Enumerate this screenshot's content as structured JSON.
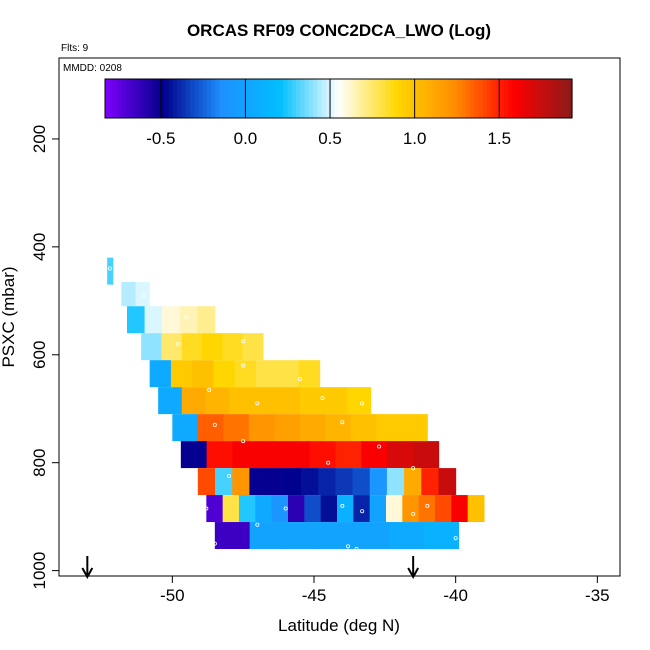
{
  "chart_data": {
    "type": "heatmap",
    "title": "ORCAS RF09 CONC2DCA_LWO (Log)",
    "flights_label": "Flts: 9",
    "date_label": "MMDD: 0208",
    "xlabel": "Latitude (deg N)",
    "ylabel": "PSXC (mbar)",
    "xlim": [
      -54.0,
      -34.2
    ],
    "ylim": [
      1010,
      50
    ],
    "y_reversed": true,
    "x_ticks": [
      -50,
      -45,
      -40,
      -35
    ],
    "x_tick_labels": [
      "-50",
      "-45",
      "-40",
      "-35"
    ],
    "y_ticks": [
      200,
      400,
      600,
      800,
      1000
    ],
    "y_tick_labels": [
      "200",
      "400",
      "600",
      "800",
      "1000"
    ],
    "colorbar": {
      "range": [
        -0.83,
        1.93
      ],
      "ticks": [
        -0.5,
        0.0,
        0.5,
        1.0,
        1.5
      ],
      "tick_labels": [
        "-0.5",
        "0.0",
        "0.5",
        "1.0",
        "1.5"
      ],
      "colors": [
        "#7f00ff",
        "#00008b",
        "#1e90ff",
        "#00bfff",
        "#ffffff",
        "#ffd700",
        "#ff8c00",
        "#ff0000",
        "#8b1a1a"
      ]
    },
    "bands": [
      {
        "p_top": 420,
        "p_bot": 470,
        "x_start": -52.3,
        "x_end": -52.1,
        "values": [
          0.3
        ]
      },
      {
        "p_top": 465,
        "p_bot": 510,
        "x_start": -51.8,
        "x_end": -50.3,
        "values": [
          0.45,
          0.5,
          0.55
        ]
      },
      {
        "p_top": 510,
        "p_bot": 560,
        "x_start": -51.6,
        "x_end": -48.5,
        "values": [
          0.25,
          0.5,
          0.6,
          0.65,
          0.7
        ]
      },
      {
        "p_top": 560,
        "p_bot": 610,
        "x_start": -51.1,
        "x_end": -46.8,
        "values": [
          0.4,
          0.75,
          0.85,
          0.9,
          0.85,
          0.8
        ]
      },
      {
        "p_top": 610,
        "p_bot": 660,
        "x_start": -50.8,
        "x_end": -44.8,
        "values": [
          0.05,
          0.95,
          1.0,
          0.9,
          0.85,
          0.8,
          0.8,
          0.85
        ]
      },
      {
        "p_top": 660,
        "p_bot": 710,
        "x_start": -50.5,
        "x_end": -43.0,
        "values": [
          0.05,
          1.1,
          1.05,
          1.0,
          1.0,
          1.0,
          0.95,
          0.95,
          0.9
        ]
      },
      {
        "p_top": 710,
        "p_bot": 760,
        "x_start": -50.0,
        "x_end": -41.0,
        "values": [
          0.05,
          1.35,
          1.3,
          1.2,
          1.15,
          1.1,
          1.05,
          1.0,
          0.95,
          0.95
        ]
      },
      {
        "p_top": 760,
        "p_bot": 810,
        "x_start": -49.7,
        "x_end": -40.6,
        "values": [
          -0.5,
          1.55,
          1.6,
          1.6,
          1.6,
          1.55,
          1.5,
          1.6,
          1.7,
          1.75
        ]
      },
      {
        "p_top": 810,
        "p_bot": 860,
        "x_start": -49.1,
        "x_end": -40.0,
        "values": [
          1.4,
          0.3,
          1.2,
          -0.5,
          -0.5,
          -0.48,
          -0.45,
          -0.4,
          -0.35,
          -0.3,
          -0.1,
          0.4,
          1.1,
          1.5,
          1.75
        ]
      },
      {
        "p_top": 860,
        "p_bot": 910,
        "x_start": -48.8,
        "x_end": -39.0,
        "values": [
          -0.7,
          0.8,
          0.25,
          0.05,
          -0.1,
          -0.6,
          -0.3,
          -0.45,
          0.1,
          -0.4,
          0.0,
          0.6,
          1.2,
          1.3,
          1.4,
          1.6,
          1.0
        ]
      },
      {
        "p_top": 910,
        "p_bot": 960,
        "x_start": -48.5,
        "x_end": -39.9,
        "values": [
          -0.65,
          0.0,
          0.0,
          0.0,
          0.0,
          0.05,
          0.1
        ]
      }
    ],
    "arrows": [
      -53.0,
      -41.5
    ],
    "obs_points": [
      [
        -52.2,
        440
      ],
      [
        -51.0,
        490
      ],
      [
        -49.5,
        530
      ],
      [
        -48.0,
        555
      ],
      [
        -49.8,
        580
      ],
      [
        -47.5,
        575
      ],
      [
        -47.5,
        620
      ],
      [
        -45.5,
        645
      ],
      [
        -48.7,
        665
      ],
      [
        -47.0,
        690
      ],
      [
        -44.7,
        680
      ],
      [
        -43.3,
        690
      ],
      [
        -48.5,
        730
      ],
      [
        -44.0,
        725
      ],
      [
        -47.5,
        760
      ],
      [
        -42.7,
        770
      ],
      [
        -48.0,
        825
      ],
      [
        -44.5,
        800
      ],
      [
        -41.5,
        810
      ],
      [
        -48.8,
        885
      ],
      [
        -46.0,
        885
      ],
      [
        -44.0,
        880
      ],
      [
        -43.3,
        890
      ],
      [
        -41.0,
        880
      ],
      [
        -48.5,
        950
      ],
      [
        -43.8,
        955
      ],
      [
        -43.5,
        960
      ],
      [
        -40.0,
        940
      ],
      [
        -47.0,
        915
      ],
      [
        -41.5,
        895
      ]
    ]
  }
}
